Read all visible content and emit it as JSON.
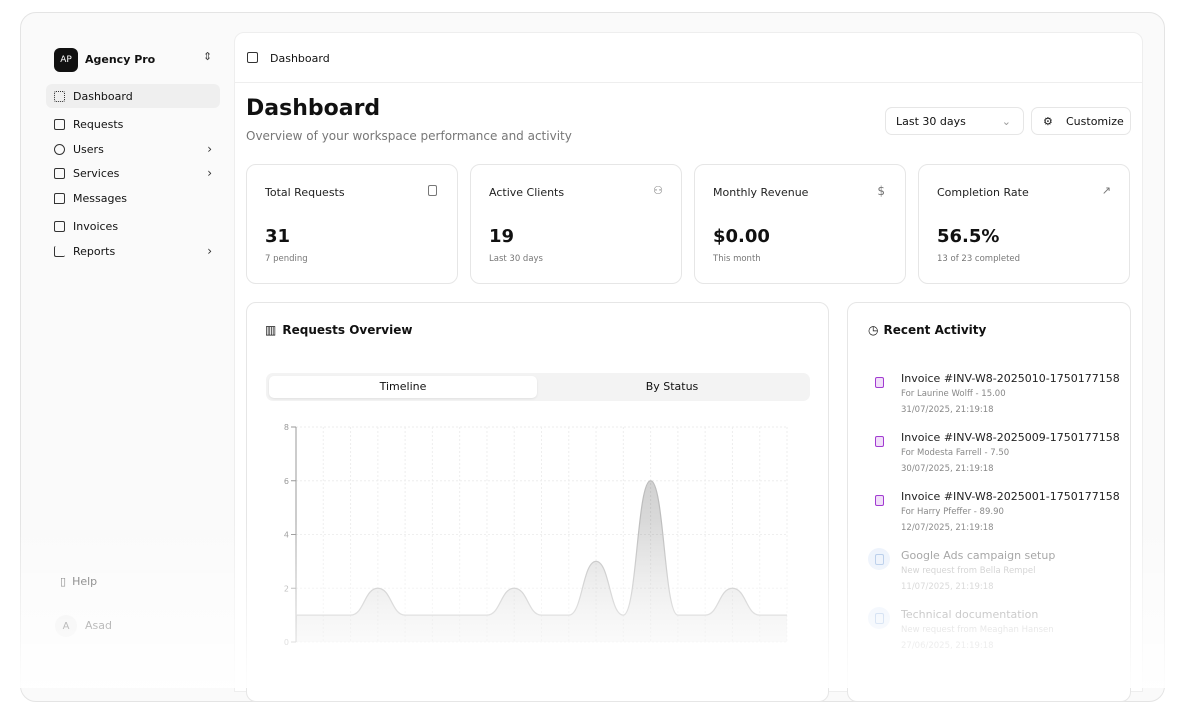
{
  "sidebar": {
    "workspace": {
      "avatar": "AP",
      "name": "Agency Pro"
    },
    "nav": [
      "Dashboard",
      "Requests",
      "Users",
      "Services",
      "Messages",
      "Invoices",
      "Reports"
    ],
    "help": "Help",
    "user": {
      "avatar": "A",
      "name": "Asad"
    }
  },
  "breadcrumb": "Dashboard",
  "header": {
    "title": "Dashboard",
    "subtitle": "Overview of your workspace performance and activity",
    "range": "Last 30 days",
    "customize": "Customize"
  },
  "stats": [
    {
      "label": "Total Requests",
      "value": "31",
      "note": "7 pending"
    },
    {
      "label": "Active Clients",
      "value": "19",
      "note": "Last 30 days"
    },
    {
      "label": "Monthly Revenue",
      "value": "$0.00",
      "note": "This month"
    },
    {
      "label": "Completion Rate",
      "value": "56.5%",
      "note": "13 of 23 completed"
    }
  ],
  "overview": {
    "title": "Requests Overview",
    "tabs": [
      "Timeline",
      "By Status"
    ]
  },
  "chart_data": {
    "type": "area",
    "categories": [
      null,
      null,
      null,
      null,
      null,
      null,
      null,
      null,
      null,
      null,
      null,
      null,
      null,
      null,
      null,
      null,
      null,
      null,
      null
    ],
    "values": [
      1,
      1,
      1,
      2,
      1,
      1,
      1,
      1,
      2,
      1,
      1,
      3,
      1,
      6,
      1,
      1,
      2,
      1,
      1
    ],
    "ylim": [
      0,
      8
    ],
    "yticks": [
      0,
      2,
      4,
      6,
      8
    ],
    "grid": true,
    "color": "#bdbdbd"
  },
  "activity": {
    "title": "Recent Activity",
    "items": [
      {
        "title": "Invoice #INV-W8-2025010-1750177158",
        "detail": "For Laurine Wolff - 15.00",
        "time": "31/07/2025, 21:19:18"
      },
      {
        "title": "Invoice #INV-W8-2025009-1750177158",
        "detail": "For Modesta Farrell - 7.50",
        "time": "30/07/2025, 21:19:18"
      },
      {
        "title": "Invoice #INV-W8-2025001-1750177158",
        "detail": "For Harry Pfeffer - 89.90",
        "time": "12/07/2025, 21:19:18"
      },
      {
        "title": "Google Ads campaign setup",
        "detail": "New request from Bella Rempel",
        "time": "11/07/2025, 21:19:18"
      },
      {
        "title": "Technical documentation",
        "detail": "New request from Meaghan Hansen",
        "time": "27/06/2025, 21:19:18"
      }
    ]
  }
}
